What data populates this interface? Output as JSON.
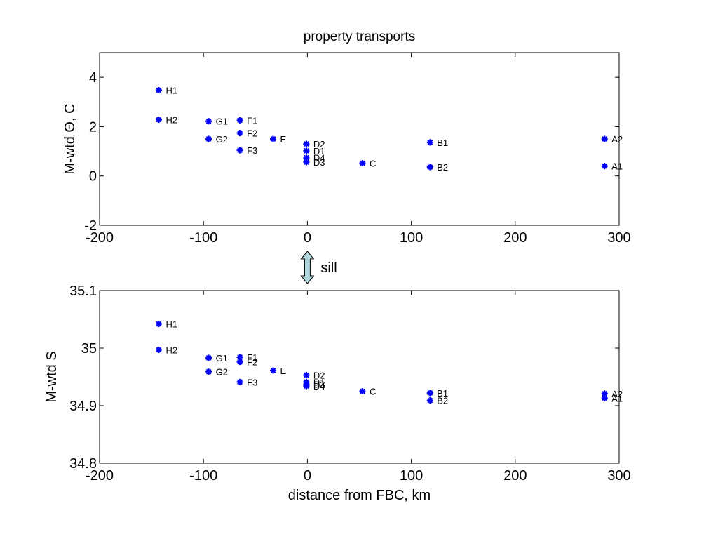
{
  "chart_data": [
    {
      "type": "scatter",
      "title": "property transports",
      "xlabel": "",
      "ylabel": "M-wtd Θ, C",
      "xlim": [
        -200,
        300
      ],
      "ylim": [
        -2,
        5
      ],
      "xticks": [
        -200,
        -100,
        0,
        100,
        200,
        300
      ],
      "yticks": [
        -2,
        0,
        2,
        4
      ],
      "marker_color": "#0000ff",
      "points": [
        {
          "label": "H1",
          "x": -143,
          "y": 3.48
        },
        {
          "label": "H2",
          "x": -143,
          "y": 2.28
        },
        {
          "label": "G1",
          "x": -95,
          "y": 2.22
        },
        {
          "label": "G2",
          "x": -95,
          "y": 1.5
        },
        {
          "label": "F1",
          "x": -65,
          "y": 2.26
        },
        {
          "label": "F2",
          "x": -65,
          "y": 1.74
        },
        {
          "label": "F3",
          "x": -65,
          "y": 1.04
        },
        {
          "label": "E",
          "x": -33,
          "y": 1.5
        },
        {
          "label": "D2",
          "x": -1,
          "y": 1.3
        },
        {
          "label": "D1",
          "x": -1,
          "y": 1.02
        },
        {
          "label": "D4",
          "x": -1,
          "y": 0.74
        },
        {
          "label": "D3",
          "x": -1,
          "y": 0.56
        },
        {
          "label": "C",
          "x": 53,
          "y": 0.52
        },
        {
          "label": "B1",
          "x": 118,
          "y": 1.36
        },
        {
          "label": "B2",
          "x": 118,
          "y": 0.36
        },
        {
          "label": "A2",
          "x": 286,
          "y": 1.5
        },
        {
          "label": "A1",
          "x": 286,
          "y": 0.4
        }
      ]
    },
    {
      "type": "scatter",
      "title": "",
      "xlabel": "distance from FBC, km",
      "ylabel": "M-wtd S",
      "xlim": [
        -200,
        300
      ],
      "ylim": [
        34.8,
        35.1
      ],
      "xticks": [
        -200,
        -100,
        0,
        100,
        200,
        300
      ],
      "yticks": [
        34.8,
        34.9,
        35,
        35.1
      ],
      "marker_color": "#0000ff",
      "points": [
        {
          "label": "H1",
          "x": -143,
          "y": 35.042
        },
        {
          "label": "H2",
          "x": -143,
          "y": 34.997
        },
        {
          "label": "G1",
          "x": -95,
          "y": 34.983
        },
        {
          "label": "G2",
          "x": -95,
          "y": 34.959
        },
        {
          "label": "F1",
          "x": -65,
          "y": 34.984
        },
        {
          "label": "F2",
          "x": -65,
          "y": 34.976
        },
        {
          "label": "F3",
          "x": -65,
          "y": 34.941
        },
        {
          "label": "E",
          "x": -33,
          "y": 34.961
        },
        {
          "label": "D2",
          "x": -1,
          "y": 34.953
        },
        {
          "label": "D1",
          "x": -1,
          "y": 34.941
        },
        {
          "label": "D3",
          "x": -1,
          "y": 34.937
        },
        {
          "label": "D4",
          "x": -1,
          "y": 34.934
        },
        {
          "label": "C",
          "x": 53,
          "y": 34.925
        },
        {
          "label": "B1",
          "x": 118,
          "y": 34.922
        },
        {
          "label": "B2",
          "x": 118,
          "y": 34.909
        },
        {
          "label": "A2",
          "x": 286,
          "y": 34.921
        },
        {
          "label": "A1",
          "x": 286,
          "y": 34.913
        }
      ]
    }
  ],
  "annotation": {
    "sill_label": "sill",
    "sill_arrow_x": 0,
    "arrow_fill": "#b0d8dc"
  }
}
